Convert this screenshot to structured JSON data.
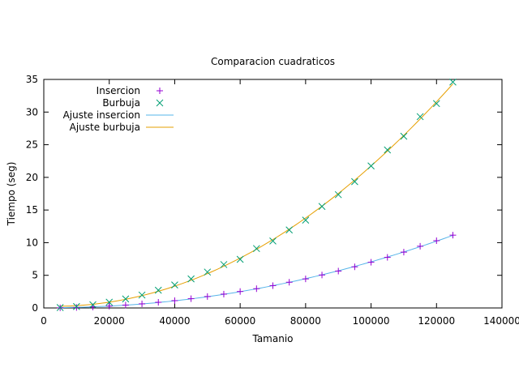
{
  "chart_data": {
    "type": "scatter",
    "title": "Comparacion cuadraticos",
    "xlabel": "Tamanio",
    "ylabel": "Tiempo (seg)",
    "xlim": [
      0,
      140000
    ],
    "ylim": [
      0,
      35
    ],
    "xticks": [
      0,
      20000,
      40000,
      60000,
      80000,
      100000,
      120000,
      140000
    ],
    "yticks": [
      0,
      5,
      10,
      15,
      20,
      25,
      30,
      35
    ],
    "xtick_labels": [
      "0",
      "20000",
      "40000",
      "60000",
      "80000",
      "100000",
      "120000",
      "140000"
    ],
    "ytick_labels": [
      "0",
      "5",
      "10",
      "15",
      "20",
      "25",
      "30",
      "35"
    ],
    "grid": false,
    "legend_position": "top-left",
    "x": [
      5000,
      10000,
      15000,
      20000,
      25000,
      30000,
      35000,
      40000,
      45000,
      50000,
      55000,
      60000,
      65000,
      70000,
      75000,
      80000,
      85000,
      90000,
      95000,
      100000,
      105000,
      110000,
      115000,
      120000,
      125000
    ],
    "series": [
      {
        "name": "Insercion",
        "marker": "plus",
        "color": "#9400d3",
        "values": [
          0.02,
          0.07,
          0.15,
          0.28,
          0.44,
          0.63,
          0.87,
          1.12,
          1.42,
          1.75,
          2.12,
          2.52,
          2.95,
          3.42,
          3.94,
          4.45,
          5.05,
          5.65,
          6.3,
          7.0,
          7.75,
          8.55,
          9.45,
          10.3,
          11.15
        ]
      },
      {
        "name": "Burbuja",
        "marker": "cross",
        "color": "#009e73",
        "values": [
          0.06,
          0.22,
          0.5,
          0.88,
          1.38,
          1.98,
          2.72,
          3.52,
          4.45,
          5.5,
          6.65,
          7.45,
          9.1,
          10.25,
          11.95,
          13.45,
          15.55,
          17.35,
          19.35,
          21.75,
          24.2,
          26.3,
          29.3,
          31.3,
          34.6
        ]
      },
      {
        "name": "Ajuste insercion",
        "type": "line",
        "color": "#56b4e9",
        "fit": "quadratic",
        "of_series": "Insercion"
      },
      {
        "name": "Ajuste burbuja",
        "type": "line",
        "color": "#e69f00",
        "fit": "quadratic",
        "of_series": "Burbuja"
      }
    ]
  }
}
